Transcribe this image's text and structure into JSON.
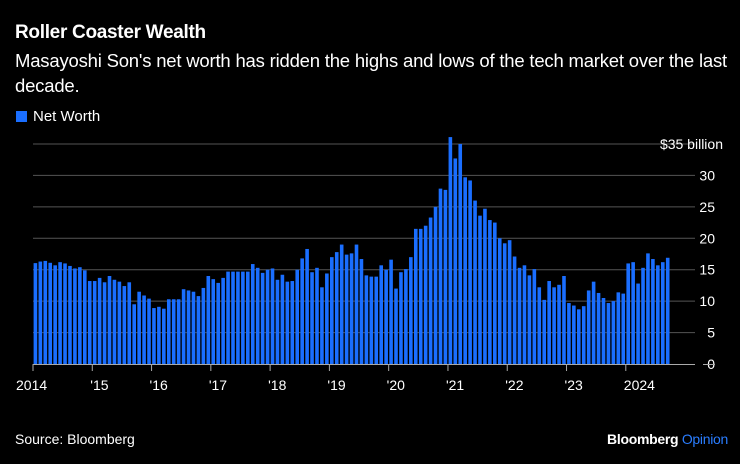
{
  "header": {
    "title": "Roller Coaster Wealth",
    "subtitle": "Masayoshi Son's net worth has ridden the highs and lows of the tech market over the last decade."
  },
  "footer": {
    "source": "Source: Bloomberg",
    "brand": "Bloomberg",
    "brand_suffix": "Opinion"
  },
  "colors": {
    "bar": "#1a6eff",
    "background": "#000000",
    "grid": "#555555"
  },
  "chart_data": {
    "type": "bar",
    "title": "Roller Coaster Wealth",
    "legend": {
      "entries": [
        "Net Worth"
      ],
      "placement": "top-left"
    },
    "series": [
      {
        "name": "Net Worth",
        "values": [
          16.05,
          16.3,
          16.4,
          16.1,
          15.7,
          16.2,
          16,
          15.6,
          15.2,
          15.4,
          14.9,
          13.2,
          13.2,
          13.7,
          13,
          14,
          13.4,
          13.1,
          12.4,
          13,
          9.5,
          11.5,
          10.9,
          10.4,
          8.9,
          9.1,
          8.8,
          10.3,
          10.3,
          10.3,
          11.9,
          11.7,
          11.5,
          10.8,
          12.1,
          14,
          13.5,
          12.9,
          13.7,
          14.7,
          14.7,
          14.7,
          14.7,
          14.7,
          15.9,
          15.3,
          14.5,
          15,
          15.2,
          13.4,
          14.2,
          13.1,
          13.2,
          15,
          16.8,
          18.3,
          14.6,
          15.3,
          12.2,
          14.4,
          17,
          17.8,
          19,
          17.4,
          17.6,
          19,
          16.7,
          14.1,
          13.9,
          13.9,
          15.7,
          15,
          16.6,
          12,
          14.6,
          15.1,
          17,
          21.5,
          21.5,
          22,
          23.3,
          25,
          27.9,
          27.7,
          36.1,
          32.7,
          35,
          29.7,
          29.2,
          26,
          23.6,
          24.7,
          22.9,
          22.5,
          20,
          19.2,
          19.7,
          17.1,
          15.3,
          15.7,
          14.1,
          15.1,
          12.2,
          10.2,
          13.2,
          12.2,
          12.6,
          14,
          9.7,
          9.3,
          8.7,
          9.2,
          11.7,
          13.1,
          11.3,
          10.5,
          9.7,
          10,
          11.4,
          11.2,
          16,
          16.2,
          12.8,
          15.3,
          17.6,
          16.7,
          15.7,
          16.2,
          16.9
        ]
      }
    ],
    "x_start": "2014-01",
    "x_frequency": "monthly",
    "x_tick_labels": [
      "2014",
      "'15",
      "'16",
      "'17",
      "'18",
      "'19",
      "'20",
      "'21",
      "'22",
      "'23",
      "2024"
    ],
    "y_tick_labels": [
      "0",
      "5",
      "10",
      "15",
      "20",
      "25",
      "30",
      "$35 billion"
    ],
    "y_ticks": [
      0,
      5,
      10,
      15,
      20,
      25,
      30,
      35
    ],
    "ylim": [
      0,
      35
    ],
    "y_unit": "billion USD",
    "grid": true,
    "y_axis_side": "right"
  }
}
